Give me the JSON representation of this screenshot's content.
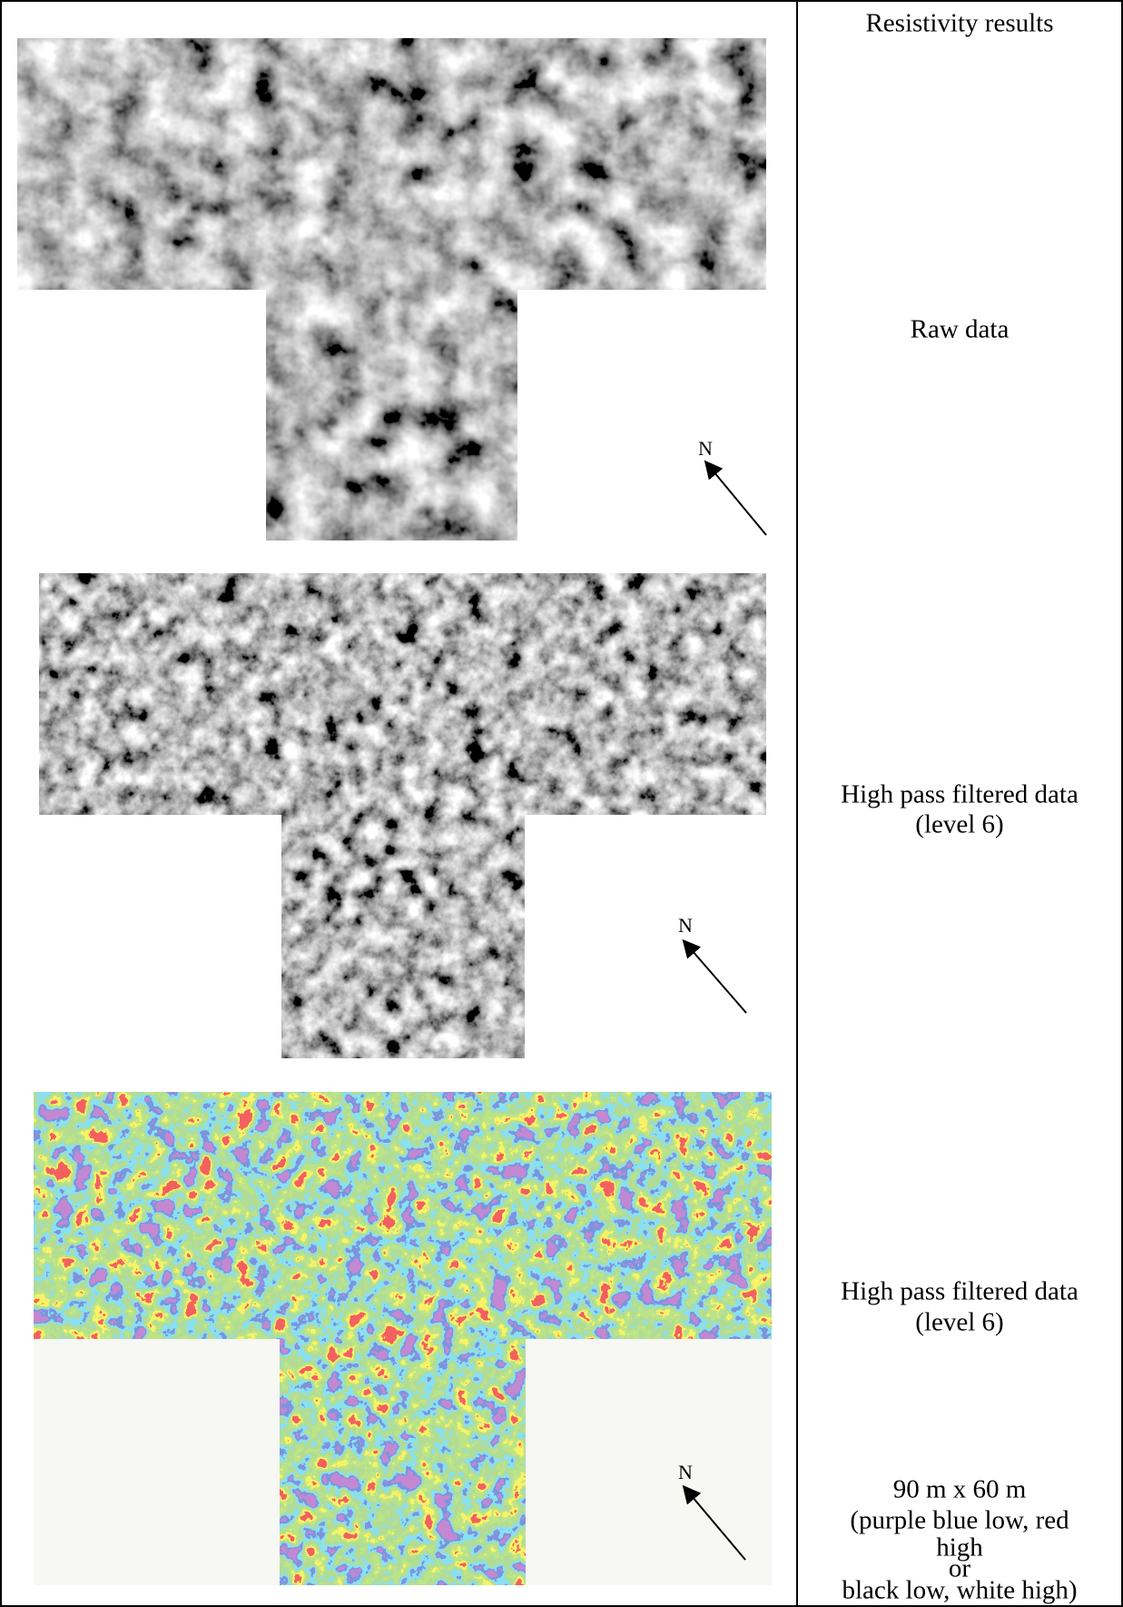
{
  "header": "Resistivity results",
  "rows": [
    {
      "caption": [
        "Raw data"
      ],
      "north": "N"
    },
    {
      "caption": [
        "High pass filtered data",
        "(level 6)"
      ],
      "north": "N"
    },
    {
      "caption": [
        "High pass filtered data",
        "(level 6)"
      ],
      "north": "N",
      "note": [
        "90 m x 60 m",
        "(purple blue low, red",
        "high",
        "or",
        "black low, white high)"
      ]
    }
  ]
}
